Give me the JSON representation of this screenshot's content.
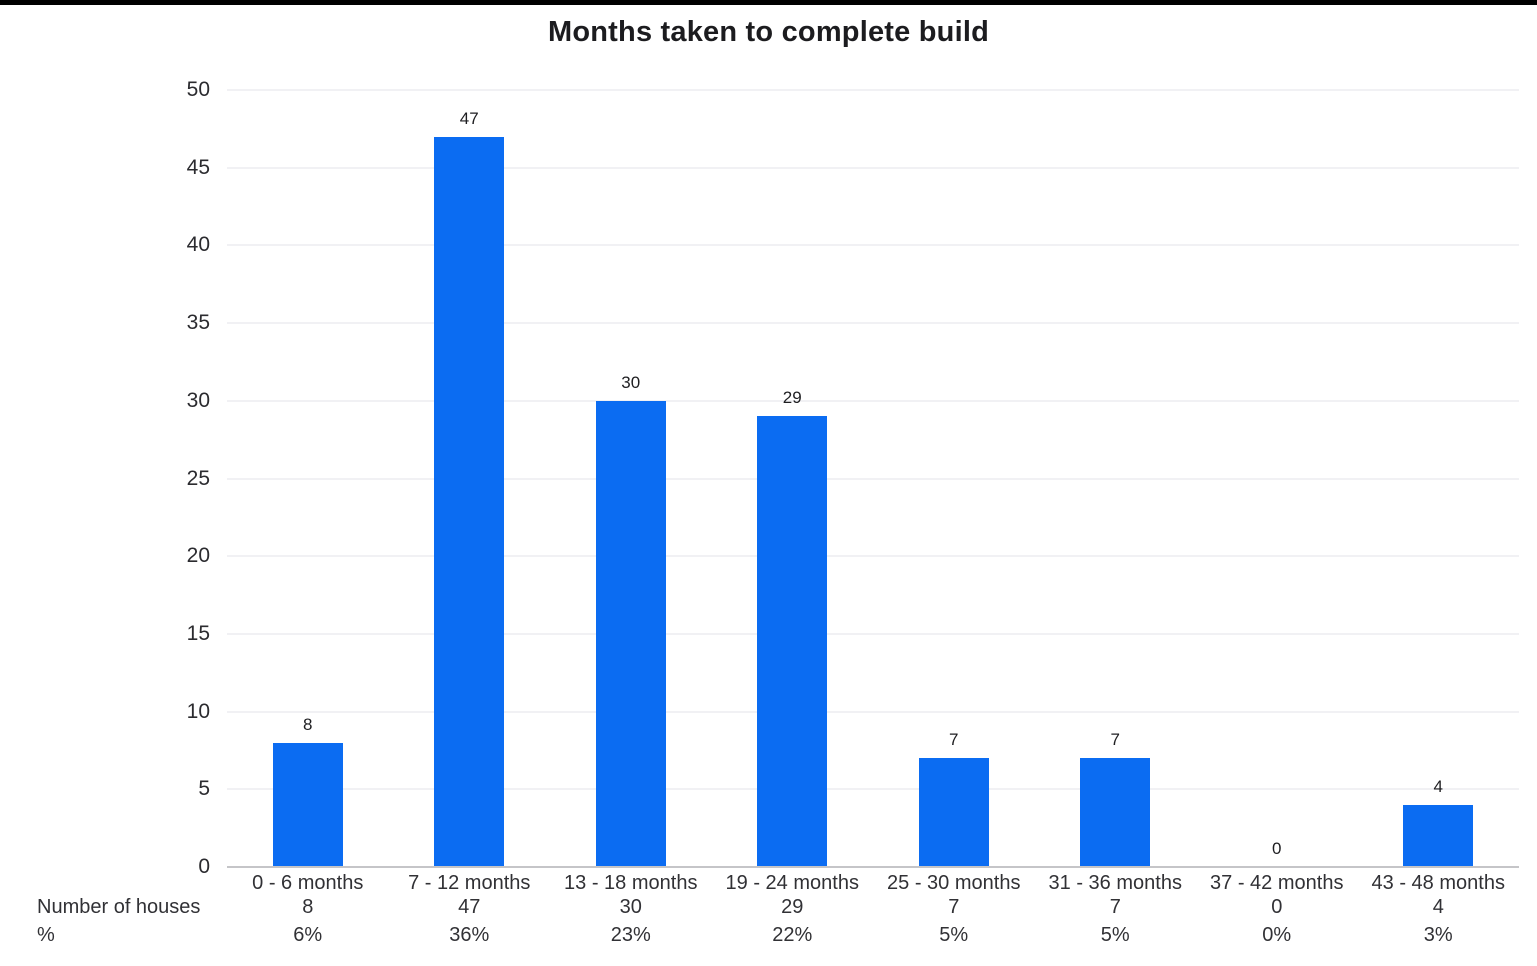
{
  "window": {
    "top_strip_color": "#000000",
    "background_color": "#ffffff"
  },
  "chart_data": {
    "type": "bar",
    "title": "Months taken to complete build",
    "categories": [
      "0 - 6 months",
      "7 - 12 months",
      "13 - 18 months",
      "19 - 24 months",
      "25 - 30 months",
      "31 - 36 months",
      "37 - 42 months",
      "43 - 48 months"
    ],
    "values": [
      8,
      47,
      30,
      29,
      7,
      7,
      0,
      4
    ],
    "data_labels": [
      "8",
      "47",
      "30",
      "29",
      "7",
      "7",
      "0",
      "4"
    ],
    "percent_labels": [
      "6%",
      "36%",
      "23%",
      "22%",
      "5%",
      "5%",
      "0%",
      "3%"
    ],
    "xlabel": "",
    "ylabel": "",
    "ylim": [
      0,
      50
    ],
    "yticks": [
      0,
      5,
      10,
      15,
      20,
      25,
      30,
      35,
      40,
      45,
      50
    ],
    "grid": "horizontal",
    "legend": "none",
    "bar_color": "#0b6cf2",
    "table": {
      "row_labels": [
        "Number of houses",
        "%"
      ]
    }
  }
}
